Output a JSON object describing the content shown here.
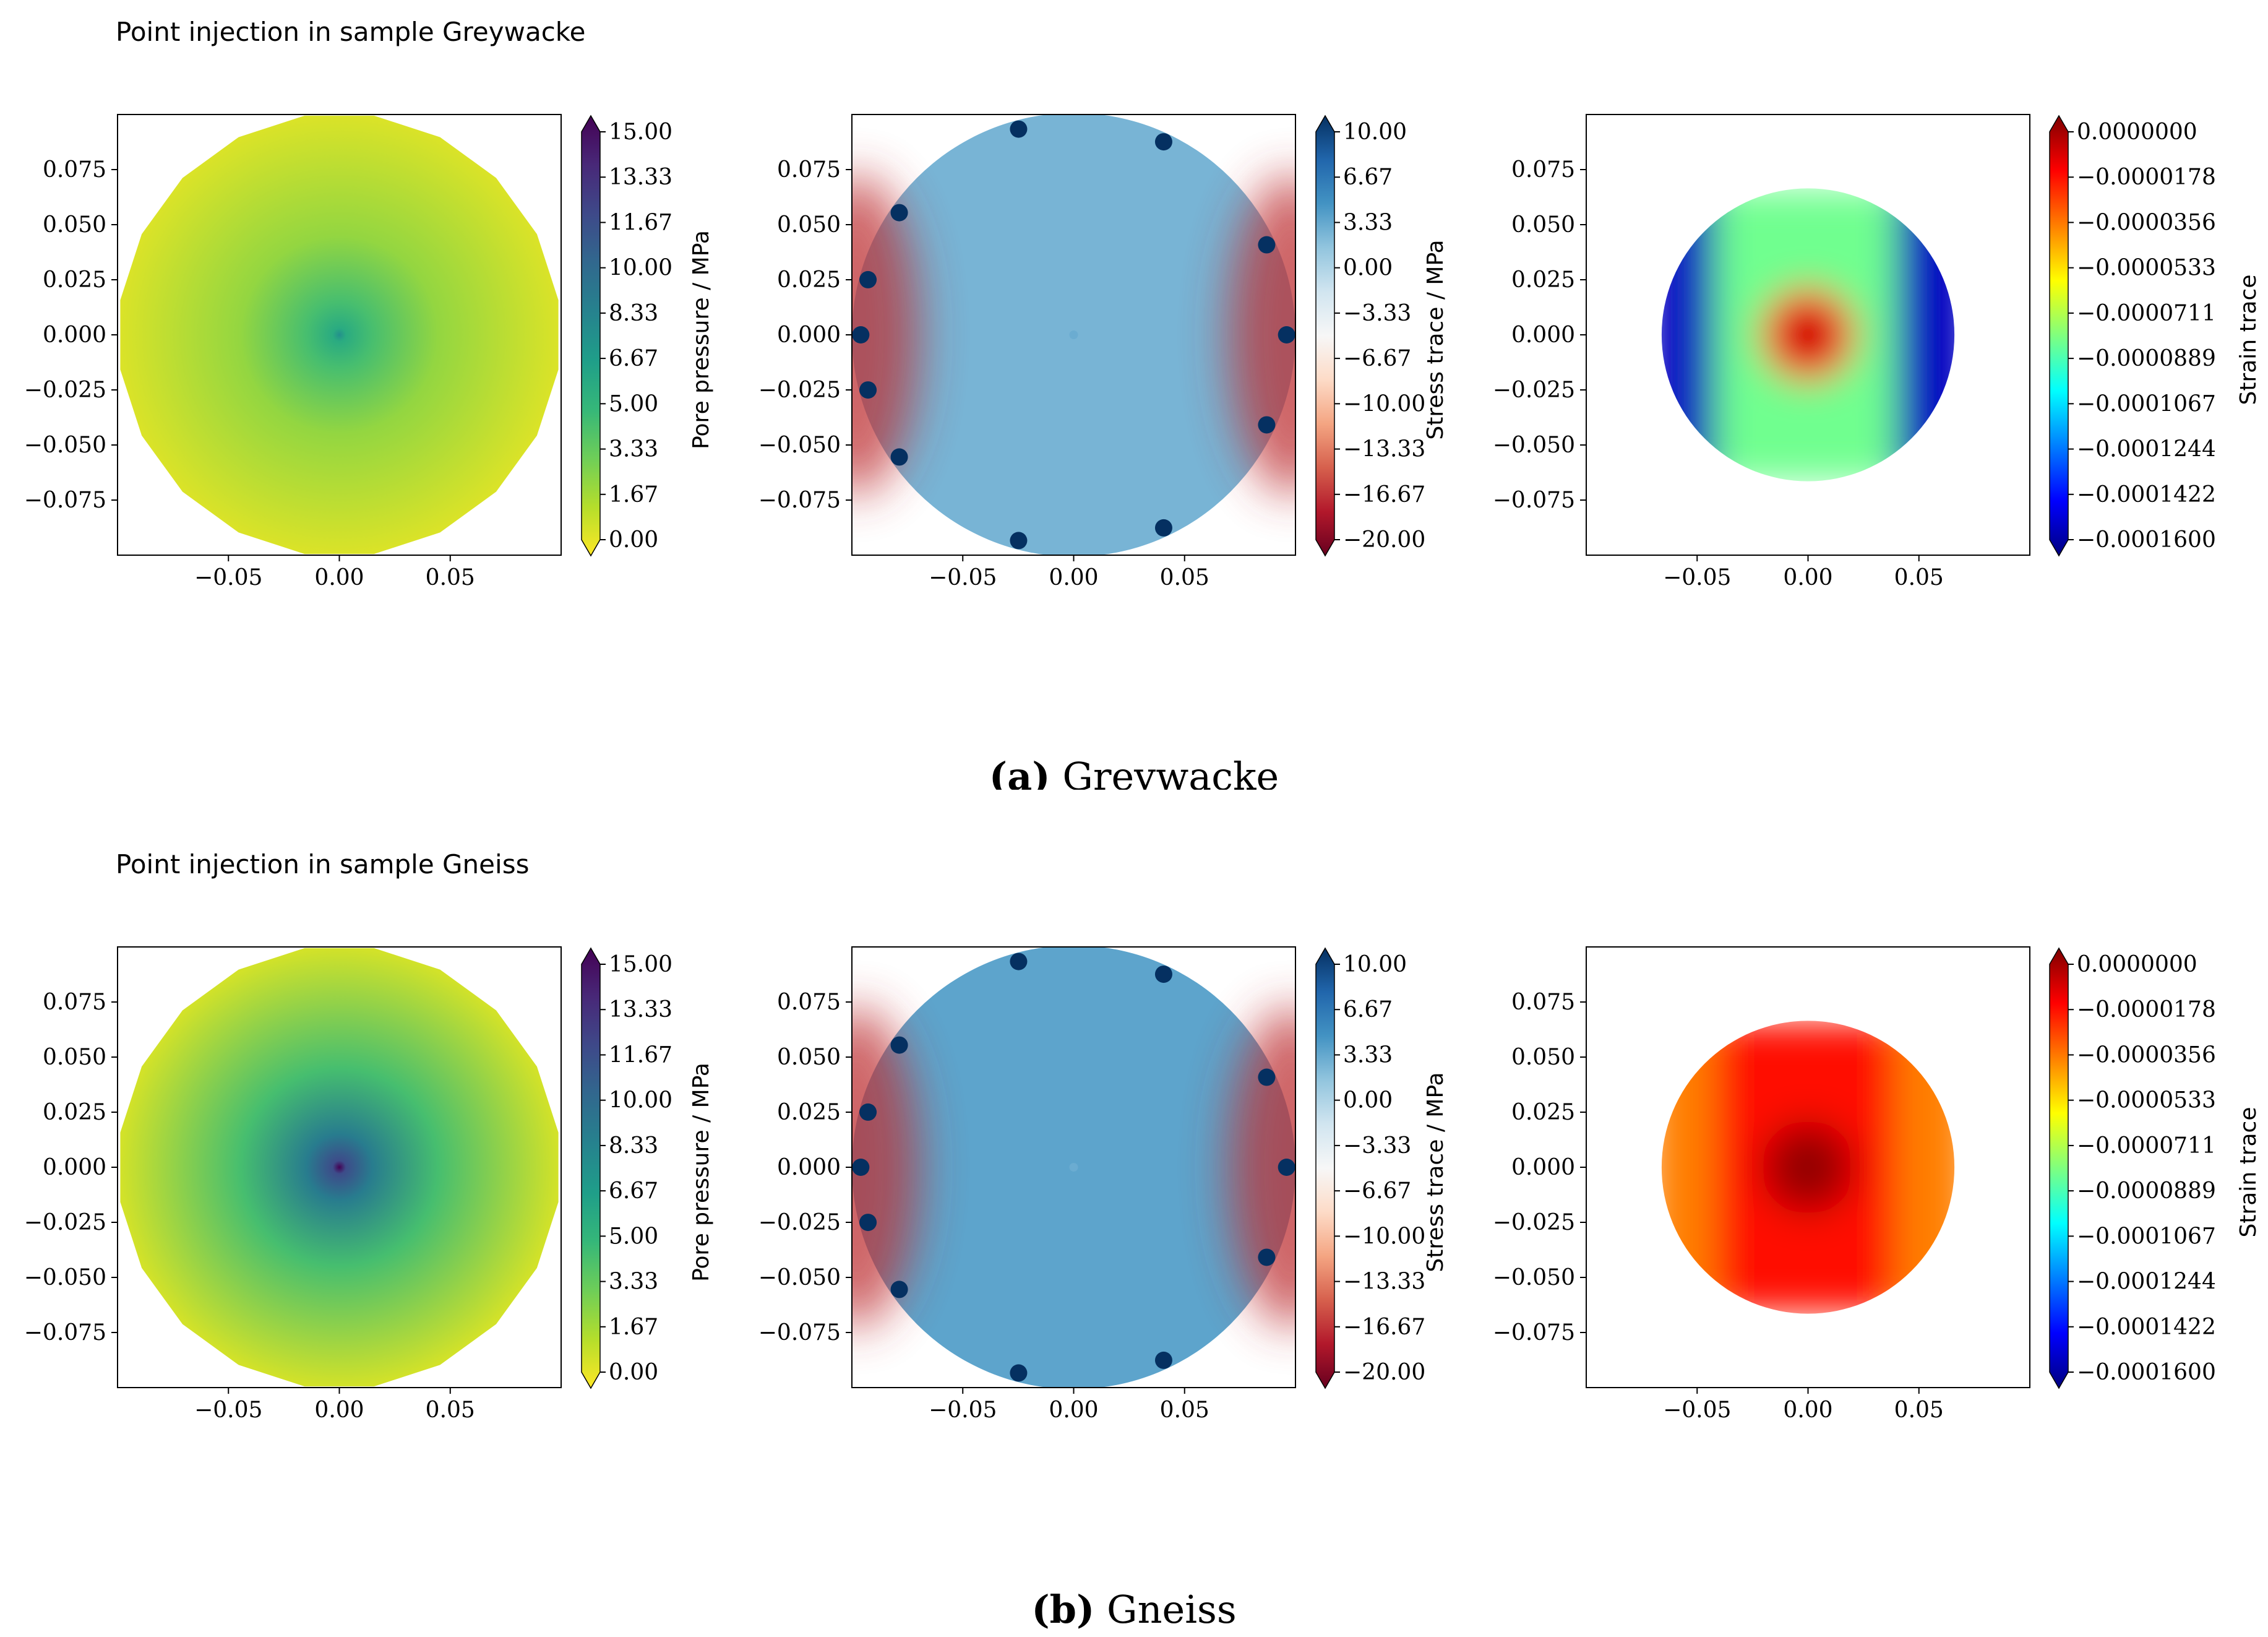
{
  "rows": [
    {
      "suptitle": "Point injection in sample Greywacke",
      "caption": {
        "letter": "(a)",
        "text": "Greywacke",
        "clipped": true
      }
    },
    {
      "suptitle": "Point injection in sample Gneiss",
      "caption": {
        "letter": "(b)",
        "text": "Gneiss",
        "clipped": false
      }
    }
  ],
  "colorbars": [
    {
      "label": "Pore pressure / MPa",
      "ticks": [
        "15.00",
        "13.33",
        "11.67",
        "10.00",
        "8.33",
        "6.67",
        "5.00",
        "3.33",
        "1.67",
        "0.00"
      ],
      "cmap": "viridis_r"
    },
    {
      "label": "Stress trace / MPa",
      "ticks": [
        "10.00",
        "6.67",
        "3.33",
        "0.00",
        "−3.33",
        "−6.67",
        "−10.00",
        "−13.33",
        "−16.67",
        "−20.00"
      ],
      "cmap": "RdBu"
    },
    {
      "label": "Strain trace",
      "ticks": [
        "0.0000000",
        "−0.0000178",
        "−0.0000356",
        "−0.0000533",
        "−0.0000711",
        "−0.0000889",
        "−0.0001067",
        "−0.0001244",
        "−0.0001422",
        "−0.0001600"
      ],
      "cmap": "jet_r"
    }
  ],
  "axis_ticks": {
    "x": [
      "−0.05",
      "0.00",
      "0.05"
    ],
    "y": [
      "0.075",
      "0.050",
      "0.025",
      "0.000",
      "−0.025",
      "−0.050",
      "−0.075"
    ]
  },
  "chart_data": [
    {
      "type": "heatmap",
      "sample": "Greywacke",
      "quantity": "Pore pressure / MPa",
      "center_value": 7.5,
      "edge_value": 0.8,
      "vmin": 0.0,
      "vmax": 15.0,
      "xlim": [
        -0.1,
        0.1
      ],
      "ylim": [
        -0.1,
        0.1
      ],
      "domain": "circle",
      "domain_radius": 0.1
    },
    {
      "type": "heatmap",
      "sample": "Greywacke",
      "quantity": "Stress trace / MPa",
      "background_value": 2.0,
      "edge_lobe_value": -16.0,
      "hotspot_value": 10.0,
      "vmin": -20.0,
      "vmax": 10.0,
      "xlim": [
        -0.1,
        0.1
      ],
      "ylim": [
        -0.1,
        0.1
      ],
      "domain": "circle",
      "domain_radius": 0.1
    },
    {
      "type": "heatmap",
      "sample": "Greywacke",
      "quantity": "Strain trace",
      "center_value": 0.0,
      "side_value": -0.00015,
      "vmin": -0.00016,
      "vmax": 0.0,
      "xlim": [
        -0.1,
        0.1
      ],
      "ylim": [
        -0.1,
        0.1
      ],
      "domain": "circle",
      "domain_radius": 0.066
    },
    {
      "type": "heatmap",
      "sample": "Gneiss",
      "quantity": "Pore pressure / MPa",
      "center_value": 15.0,
      "edge_value": 1.0,
      "vmin": 0.0,
      "vmax": 15.0,
      "xlim": [
        -0.1,
        0.1
      ],
      "ylim": [
        -0.1,
        0.1
      ],
      "domain": "circle",
      "domain_radius": 0.1
    },
    {
      "type": "heatmap",
      "sample": "Gneiss",
      "quantity": "Stress trace / MPa",
      "background_value": 3.0,
      "edge_lobe_value": -16.0,
      "hotspot_value": 10.0,
      "vmin": -20.0,
      "vmax": 10.0,
      "xlim": [
        -0.1,
        0.1
      ],
      "ylim": [
        -0.1,
        0.1
      ],
      "domain": "circle",
      "domain_radius": 0.1
    },
    {
      "type": "heatmap",
      "sample": "Gneiss",
      "quantity": "Strain trace",
      "center_value": 0.0,
      "side_value": -4e-05,
      "vmin": -0.00016,
      "vmax": 0.0,
      "xlim": [
        -0.1,
        0.1
      ],
      "ylim": [
        -0.1,
        0.1
      ],
      "domain": "circle",
      "domain_radius": 0.066
    }
  ],
  "colors": {
    "axis": "#000000",
    "background": "#ffffff"
  }
}
